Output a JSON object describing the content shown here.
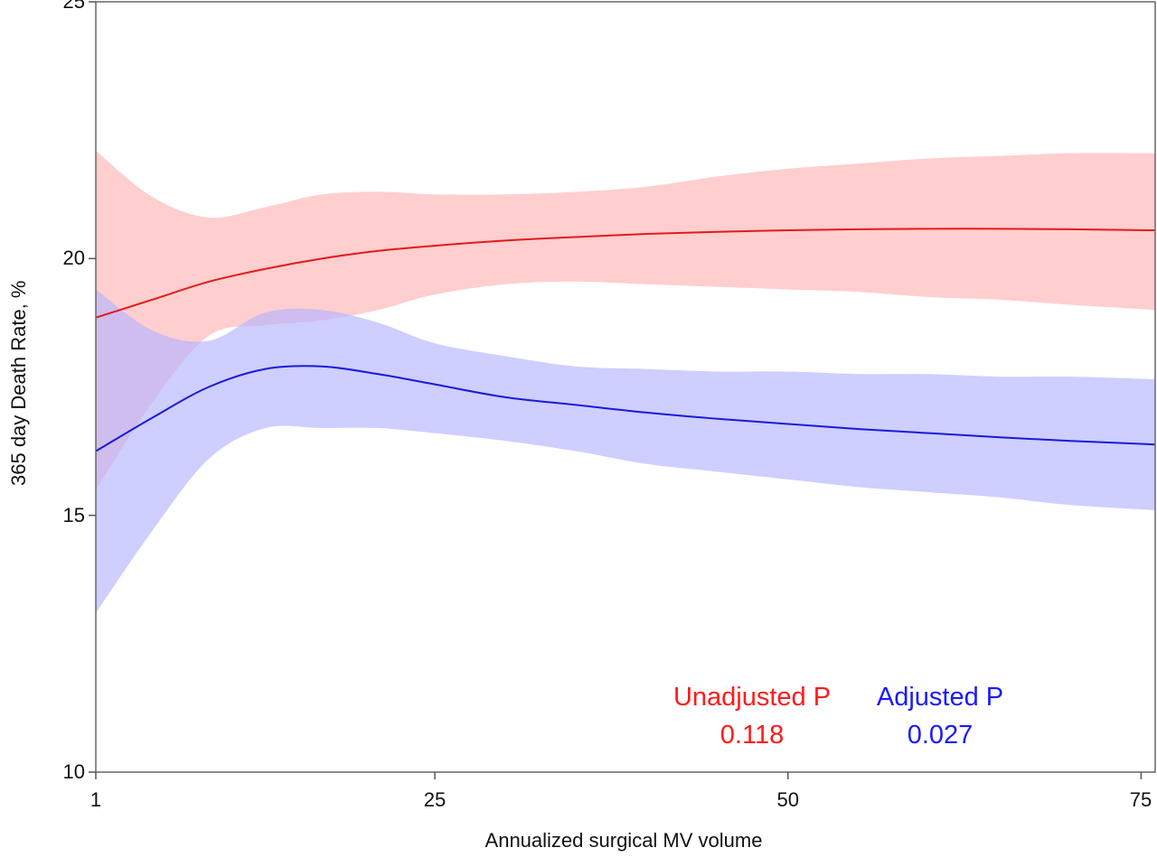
{
  "chart_data": {
    "type": "line",
    "title": "",
    "xlabel": "Annualized surgical MV volume",
    "ylabel": "365 day Death Rate, %",
    "xlim": [
      1,
      76
    ],
    "ylim": [
      10,
      25
    ],
    "xticks": [
      1,
      25,
      50,
      75
    ],
    "yticks": [
      10,
      15,
      20,
      25
    ],
    "grid": false,
    "legend": "none",
    "series": [
      {
        "color": "#e41a1c",
        "band_color": "#ffb3b3",
        "x": [
          1,
          5,
          9,
          13,
          17,
          21,
          25,
          30,
          35,
          40,
          45,
          50,
          55,
          60,
          65,
          70,
          76
        ],
        "y": [
          18.85,
          19.2,
          19.55,
          19.8,
          20.0,
          20.15,
          20.25,
          20.35,
          20.42,
          20.48,
          20.52,
          20.55,
          20.57,
          20.58,
          20.58,
          20.57,
          20.55
        ],
        "lower": [
          15.5,
          17.2,
          18.5,
          18.7,
          18.8,
          19.0,
          19.3,
          19.5,
          19.55,
          19.5,
          19.45,
          19.4,
          19.35,
          19.25,
          19.2,
          19.1,
          19.0
        ],
        "upper": [
          22.1,
          21.2,
          20.8,
          21.0,
          21.25,
          21.3,
          21.25,
          21.25,
          21.3,
          21.4,
          21.6,
          21.75,
          21.85,
          21.95,
          22.0,
          22.05,
          22.05
        ]
      },
      {
        "color": "#1a1ad9",
        "band_color": "#b3b3ff",
        "x": [
          1,
          5,
          9,
          13,
          17,
          21,
          25,
          30,
          35,
          40,
          45,
          50,
          55,
          60,
          65,
          70,
          76
        ],
        "y": [
          16.25,
          16.9,
          17.5,
          17.85,
          17.9,
          17.75,
          17.55,
          17.3,
          17.15,
          17.0,
          16.88,
          16.78,
          16.68,
          16.6,
          16.52,
          16.45,
          16.38
        ],
        "lower": [
          13.1,
          14.7,
          16.1,
          16.7,
          16.7,
          16.7,
          16.6,
          16.45,
          16.25,
          16.0,
          15.85,
          15.7,
          15.55,
          15.45,
          15.35,
          15.2,
          15.1
        ],
        "upper": [
          19.4,
          18.6,
          18.4,
          18.95,
          19.0,
          18.75,
          18.35,
          18.1,
          17.9,
          17.85,
          17.8,
          17.8,
          17.75,
          17.75,
          17.7,
          17.7,
          17.65
        ]
      }
    ],
    "annotations": [
      {
        "label": "Unadjusted P",
        "value": "0.118",
        "color": "#ff1a1a"
      },
      {
        "label": "Adjusted P",
        "value": "0.027",
        "color": "#1a1aff"
      }
    ]
  }
}
